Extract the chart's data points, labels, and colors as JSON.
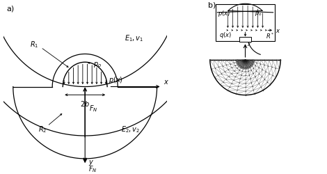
{
  "fig_width": 4.7,
  "fig_height": 2.51,
  "dpi": 100,
  "bg_color": "#ffffff",
  "line_color": "#000000"
}
